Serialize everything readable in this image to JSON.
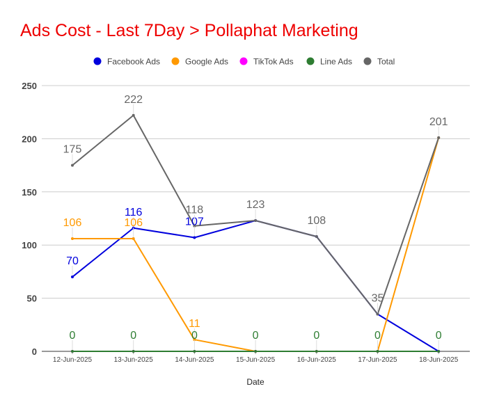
{
  "chart_data": {
    "type": "line",
    "title": "Ads Cost - Last 7Day > Pollaphat Marketing",
    "title_color": "#ee0000",
    "xlabel": "Date",
    "ylabel": "",
    "ylim": [
      0,
      250
    ],
    "yticks": [
      0,
      50,
      100,
      150,
      200,
      250
    ],
    "grid": true,
    "legend_position": "top",
    "categories": [
      "12-Jun-2025",
      "13-Jun-2025",
      "14-Jun-2025",
      "15-Jun-2025",
      "16-Jun-2025",
      "17-Jun-2025",
      "18-Jun-2025"
    ],
    "series": [
      {
        "name": "Facebook Ads",
        "color": "#0000dd",
        "values": [
          70,
          116,
          107,
          123,
          108,
          35,
          0
        ],
        "labels": [
          "70",
          "116",
          "107",
          null,
          null,
          null,
          null
        ]
      },
      {
        "name": "Google Ads",
        "color": "#ff9900",
        "values": [
          106,
          106,
          11,
          0,
          0,
          0,
          201
        ],
        "labels": [
          "106",
          "106",
          "11",
          null,
          null,
          null,
          null
        ]
      },
      {
        "name": "TikTok Ads",
        "color": "#ff00ff",
        "values": [
          0,
          0,
          0,
          0,
          0,
          0,
          0
        ],
        "labels": [
          null,
          null,
          null,
          null,
          null,
          null,
          null
        ]
      },
      {
        "name": "Line Ads",
        "color": "#2e7d32",
        "values": [
          0,
          0,
          0,
          0,
          0,
          0,
          0
        ],
        "labels": [
          "0",
          "0",
          "0",
          "0",
          "0",
          "0",
          "0"
        ]
      },
      {
        "name": "Total",
        "color": "#666666",
        "values": [
          175,
          222,
          118,
          123,
          108,
          35,
          201
        ],
        "labels": [
          "175",
          "222",
          "118",
          "123",
          "108",
          "35",
          "201"
        ]
      }
    ]
  }
}
